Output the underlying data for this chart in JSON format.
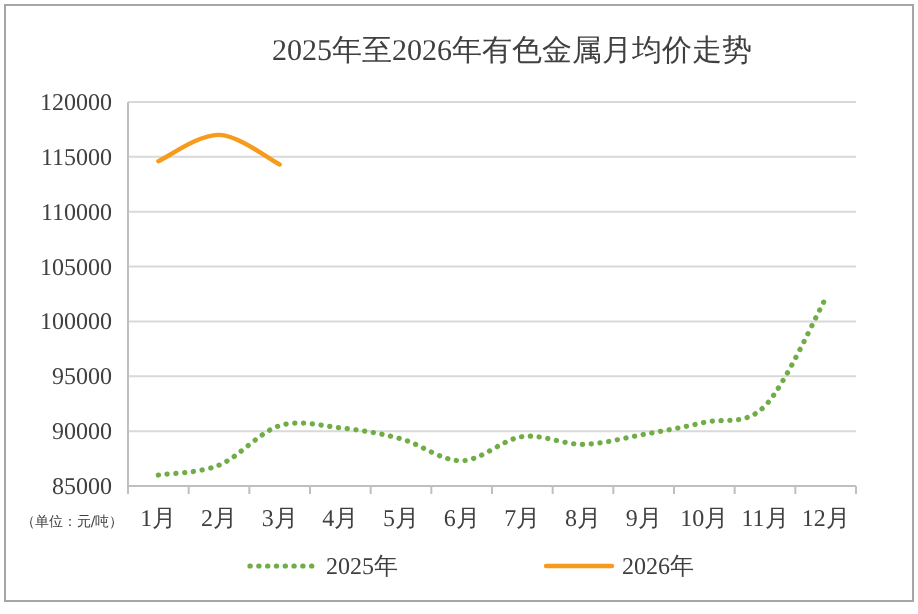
{
  "chart_data": {
    "type": "line",
    "title": "2025年至2026年有色金属月均价走势",
    "categories": [
      "1月",
      "2月",
      "3月",
      "4月",
      "5月",
      "6月",
      "7月",
      "8月",
      "9月",
      "10月",
      "11月",
      "12月"
    ],
    "series": [
      {
        "name": "2025年",
        "color": "#70ad47",
        "line_style": "dotted",
        "values": [
          86000,
          86900,
          90500,
          90300,
          89300,
          87300,
          89500,
          88800,
          89700,
          90800,
          92300,
          102100
        ]
      },
      {
        "name": "2026年",
        "color": "#f79b1d",
        "line_style": "solid",
        "values": [
          114600,
          117000,
          114300,
          null,
          null,
          null,
          null,
          null,
          null,
          null,
          null,
          null
        ]
      }
    ],
    "ylim": [
      85000,
      120000
    ],
    "yticks": [
      85000,
      90000,
      95000,
      100000,
      105000,
      110000,
      115000,
      120000
    ],
    "grid": "y",
    "legend": "bottom",
    "marker": "none",
    "annotations": [
      "（单位：元/吨）"
    ]
  }
}
